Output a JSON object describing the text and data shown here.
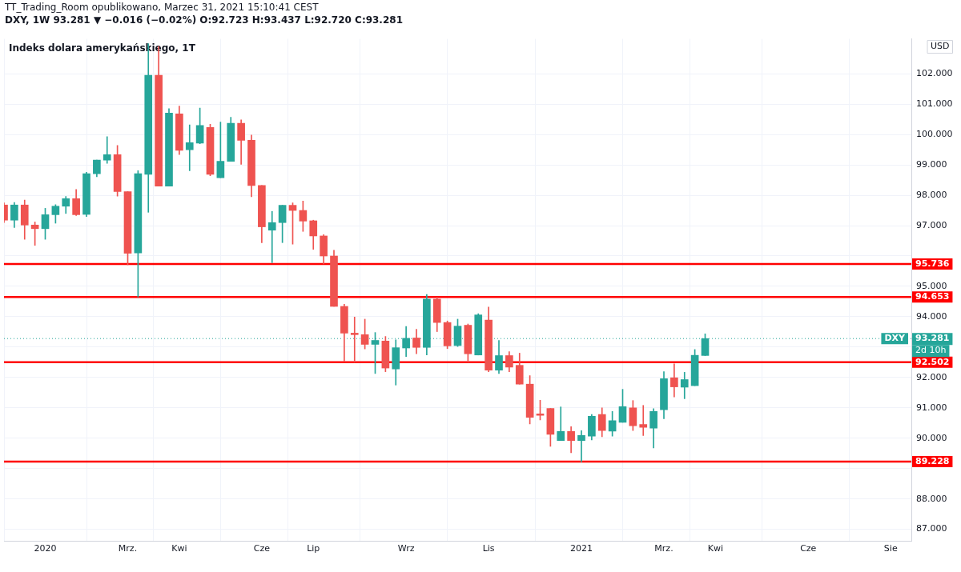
{
  "chart_data": {
    "type": "candlestick",
    "title": "Indeks dolara amerykańskiego, 1T",
    "subtitle": "DXY, 1W 93.281 ▼ −0.016 (−0.02%) O:92.723 H:93.437 L:92.720 C:93.281",
    "ylabel": "USD",
    "annotations": [
      "TT_Trading_Room opublikowano, Marzec 31, 2021 15:10:41 CEST",
      "93.281",
      "2d 10h"
    ],
    "x": [
      "2019-12-09",
      "2019-12-16",
      "2019-12-23",
      "2019-12-30",
      "2020-01-06",
      "2020-01-13",
      "2020-01-20",
      "2020-01-27",
      "2020-02-03",
      "2020-02-10",
      "2020-02-17",
      "2020-02-24",
      "2020-03-02",
      "2020-03-09",
      "2020-03-16",
      "2020-03-23",
      "2020-03-30",
      "2020-04-06",
      "2020-04-13",
      "2020-04-20",
      "2020-04-27",
      "2020-05-04",
      "2020-05-11",
      "2020-05-18",
      "2020-05-25",
      "2020-06-01",
      "2020-06-08",
      "2020-06-15",
      "2020-06-22",
      "2020-06-29",
      "2020-07-06",
      "2020-07-13",
      "2020-07-20",
      "2020-07-27",
      "2020-08-03",
      "2020-08-10",
      "2020-08-17",
      "2020-08-24",
      "2020-08-31",
      "2020-09-07",
      "2020-09-14",
      "2020-09-21",
      "2020-09-28",
      "2020-10-05",
      "2020-10-12",
      "2020-10-19",
      "2020-10-26",
      "2020-11-02",
      "2020-11-09",
      "2020-11-16",
      "2020-11-23",
      "2020-11-30",
      "2020-12-07",
      "2020-12-14",
      "2020-12-21",
      "2020-12-28",
      "2021-01-04",
      "2021-01-11",
      "2021-01-18",
      "2021-01-25",
      "2021-02-01",
      "2021-02-08",
      "2021-02-15",
      "2021-02-22",
      "2021-03-01",
      "2021-03-08",
      "2021-03-15",
      "2021-03-22",
      "2021-03-29"
    ],
    "ohlc": [
      [
        97.68,
        97.75,
        97.1,
        97.18
      ],
      [
        97.18,
        97.76,
        96.94,
        97.68
      ],
      [
        97.68,
        97.84,
        96.55,
        97.02
      ],
      [
        97.02,
        97.12,
        96.35,
        96.9
      ],
      [
        96.9,
        97.57,
        96.55,
        97.36
      ],
      [
        97.36,
        97.69,
        97.08,
        97.64
      ],
      [
        97.64,
        97.96,
        97.4,
        97.89
      ],
      [
        97.89,
        98.19,
        97.33,
        97.36
      ],
      [
        97.37,
        98.76,
        97.3,
        98.71
      ],
      [
        98.71,
        99.16,
        98.61,
        99.16
      ],
      [
        99.16,
        99.93,
        99.05,
        99.34
      ],
      [
        99.34,
        99.64,
        97.97,
        98.12
      ],
      [
        98.12,
        98.12,
        95.71,
        96.09
      ],
      [
        96.1,
        98.81,
        94.65,
        98.71
      ],
      [
        98.69,
        102.99,
        97.44,
        101.95
      ],
      [
        101.95,
        102.9,
        98.3,
        98.3
      ],
      [
        98.3,
        100.85,
        98.3,
        100.71
      ],
      [
        100.68,
        100.94,
        99.34,
        99.48
      ],
      [
        99.5,
        100.32,
        98.81,
        99.73
      ],
      [
        99.72,
        100.87,
        99.7,
        100.3
      ],
      [
        100.23,
        100.34,
        98.64,
        98.69
      ],
      [
        98.58,
        100.41,
        98.58,
        99.12
      ],
      [
        99.12,
        100.57,
        99.12,
        100.37
      ],
      [
        100.37,
        100.48,
        99.02,
        99.81
      ],
      [
        99.81,
        99.98,
        97.95,
        98.32
      ],
      [
        98.32,
        98.32,
        96.44,
        96.96
      ],
      [
        96.85,
        97.47,
        95.78,
        97.1
      ],
      [
        97.1,
        97.67,
        96.44,
        97.67
      ],
      [
        97.67,
        97.75,
        96.39,
        97.5
      ],
      [
        97.5,
        97.81,
        96.81,
        97.15
      ],
      [
        97.16,
        97.18,
        96.22,
        96.66
      ],
      [
        96.66,
        96.7,
        95.74,
        96.0
      ],
      [
        96.0,
        96.19,
        94.34,
        94.34
      ],
      [
        94.34,
        94.41,
        92.54,
        93.46
      ],
      [
        93.46,
        93.99,
        92.5,
        93.41
      ],
      [
        93.41,
        93.92,
        92.94,
        93.09
      ],
      [
        93.09,
        93.48,
        92.13,
        93.22
      ],
      [
        93.2,
        93.35,
        92.19,
        92.31
      ],
      [
        92.28,
        93.24,
        91.75,
        92.98
      ],
      [
        92.97,
        93.68,
        92.69,
        93.29
      ],
      [
        93.3,
        93.59,
        92.78,
        92.99
      ],
      [
        92.99,
        94.73,
        92.74,
        94.58
      ],
      [
        94.58,
        94.64,
        93.51,
        93.81
      ],
      [
        93.81,
        93.86,
        92.95,
        93.04
      ],
      [
        93.05,
        93.92,
        93.02,
        93.69
      ],
      [
        93.72,
        93.76,
        92.5,
        92.78
      ],
      [
        92.74,
        94.1,
        92.74,
        94.06
      ],
      [
        93.89,
        94.32,
        92.19,
        92.24
      ],
      [
        92.24,
        93.22,
        92.13,
        92.72
      ],
      [
        92.72,
        92.85,
        92.19,
        92.34
      ],
      [
        92.4,
        92.8,
        91.78,
        91.78
      ],
      [
        91.78,
        92.06,
        90.47,
        90.69
      ],
      [
        90.8,
        91.25,
        90.6,
        90.75
      ],
      [
        90.98,
        90.98,
        89.73,
        90.13
      ],
      [
        89.92,
        91.03,
        89.92,
        90.22
      ],
      [
        90.22,
        90.38,
        89.52,
        89.92
      ],
      [
        89.92,
        90.25,
        89.22,
        90.09
      ],
      [
        90.07,
        90.78,
        89.94,
        90.72
      ],
      [
        90.78,
        91.0,
        90.05,
        90.25
      ],
      [
        90.23,
        90.88,
        90.07,
        90.58
      ],
      [
        90.52,
        91.61,
        90.52,
        91.04
      ],
      [
        91.0,
        91.24,
        90.25,
        90.41
      ],
      [
        90.45,
        91.08,
        90.09,
        90.36
      ],
      [
        90.33,
        90.97,
        89.68,
        90.88
      ],
      [
        90.94,
        92.19,
        90.64,
        91.96
      ],
      [
        91.99,
        92.45,
        91.36,
        91.69
      ],
      [
        91.68,
        92.17,
        91.3,
        91.93
      ],
      [
        91.73,
        92.92,
        91.73,
        92.73
      ],
      [
        92.723,
        93.437,
        92.72,
        93.281
      ]
    ],
    "colors": [
      "#ef5350",
      "#26a69a",
      "#ef5350",
      "#ef5350",
      "#26a69a",
      "#26a69a",
      "#26a69a",
      "#ef5350",
      "#26a69a",
      "#26a69a",
      "#26a69a",
      "#ef5350",
      "#ef5350",
      "#26a69a",
      "#26a69a",
      "#ef5350",
      "#26a69a",
      "#ef5350",
      "#26a69a",
      "#26a69a",
      "#ef5350",
      "#26a69a",
      "#26a69a",
      "#ef5350",
      "#ef5350",
      "#ef5350",
      "#26a69a",
      "#26a69a",
      "#ef5350",
      "#ef5350",
      "#ef5350",
      "#ef5350",
      "#ef5350",
      "#ef5350",
      "#ef5350",
      "#ef5350",
      "#26a69a",
      "#ef5350",
      "#26a69a",
      "#26a69a",
      "#ef5350",
      "#26a69a",
      "#ef5350",
      "#ef5350",
      "#26a69a",
      "#ef5350",
      "#26a69a",
      "#ef5350",
      "#26a69a",
      "#ef5350",
      "#ef5350",
      "#ef5350",
      "#ef5350",
      "#ef5350",
      "#26a69a",
      "#ef5350",
      "#26a69a",
      "#26a69a",
      "#ef5350",
      "#26a69a",
      "#26a69a",
      "#ef5350",
      "#ef5350",
      "#26a69a",
      "#26a69a",
      "#ef5350",
      "#26a69a",
      "#26a69a",
      "#26a69a"
    ],
    "xlim": [
      "2019-12-09",
      "2021-08-16"
    ],
    "xticks": [
      {
        "value": "2020-01-06",
        "label": "2020"
      },
      {
        "value": "2020-03-02",
        "label": "Mrz."
      },
      {
        "value": "2020-04-06",
        "label": "Kwi"
      },
      {
        "value": "2020-06-01",
        "label": "Cze"
      },
      {
        "value": "2020-07-06",
        "label": "Lip"
      },
      {
        "value": "2020-09-07",
        "label": "Wrz"
      },
      {
        "value": "2020-11-02",
        "label": "Lis"
      },
      {
        "value": "2021-01-04",
        "label": "2021"
      },
      {
        "value": "2021-03-01",
        "label": "Mrz."
      },
      {
        "value": "2021-04-05",
        "label": "Kwi"
      },
      {
        "value": "2021-06-07",
        "label": "Cze"
      },
      {
        "value": "2021-08-02",
        "label": "Sie"
      }
    ],
    "ylim": [
      86.6,
      103.15
    ],
    "yticks": [
      {
        "value": 87,
        "label": "87.000"
      },
      {
        "value": 88,
        "label": "88.000"
      },
      {
        "value": 89,
        "label": null
      },
      {
        "value": 90,
        "label": "90.000"
      },
      {
        "value": 91,
        "label": "91.000"
      },
      {
        "value": 92,
        "label": "92.000"
      },
      {
        "value": 93,
        "label": null
      },
      {
        "value": 94,
        "label": "94.000"
      },
      {
        "value": 95,
        "label": "95.000"
      },
      {
        "value": 96,
        "label": null
      },
      {
        "value": 97,
        "label": "97.000"
      },
      {
        "value": 98,
        "label": "98.000"
      },
      {
        "value": 99,
        "label": "99.000"
      },
      {
        "value": 100,
        "label": "100.000"
      },
      {
        "value": 101,
        "label": "101.000"
      },
      {
        "value": 102,
        "label": "102.000"
      }
    ],
    "ref_lines": [
      {
        "axis": "y",
        "value": 95.736,
        "label": "95.736",
        "color": "#ff0000",
        "line_style": "solid"
      },
      {
        "axis": "y",
        "value": 94.653,
        "label": "94.653",
        "color": "#ff0000",
        "line_style": "solid"
      },
      {
        "axis": "y",
        "value": 92.502,
        "label": "92.502",
        "color": "#ff0000",
        "line_style": "solid"
      },
      {
        "axis": "y",
        "value": 89.228,
        "label": "89.228",
        "color": "#ff0000",
        "line_style": "solid"
      },
      {
        "axis": "y",
        "value": 93.281,
        "label": "DXY",
        "color": "#26a69a",
        "line_style": "dotted"
      }
    ],
    "grid": true,
    "legend": false
  }
}
